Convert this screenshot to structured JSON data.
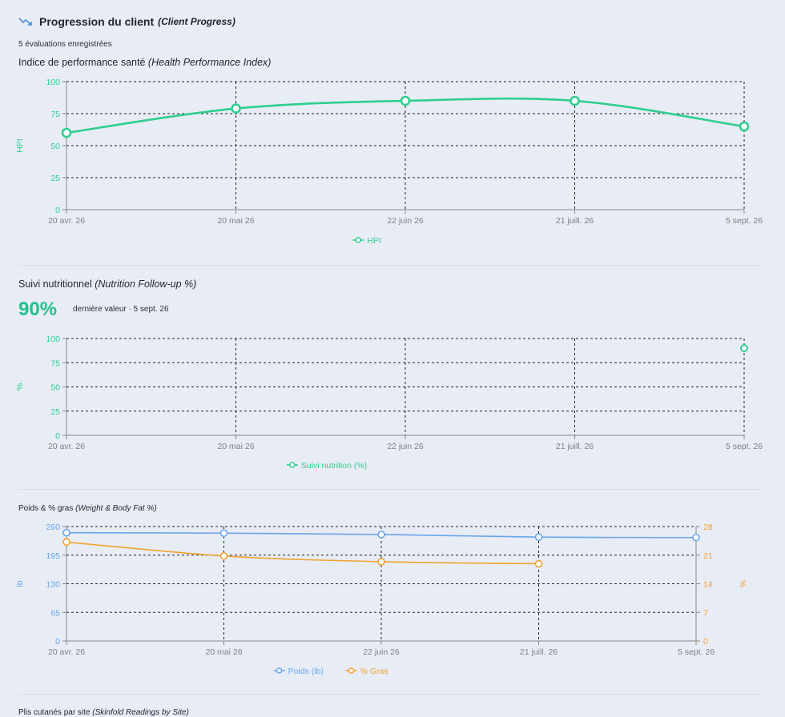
{
  "header": {
    "title": "Progression du client",
    "title_en": "(Client Progress)",
    "count_text": "5 évaluations enregistrées"
  },
  "sections": {
    "hpi": {
      "title": "Indice de performance santé",
      "title_en": "(Health Performance Index)"
    },
    "nutrition": {
      "title": "Suivi nutritionnel",
      "title_en": "(Nutrition Follow-up %)",
      "big_value": "90%",
      "last_value_text": "dernière valeur · 5 sept. 26"
    },
    "weight": {
      "title": "Poids & % gras",
      "title_en": "(Weight & Body Fat %)"
    },
    "skinfold": {
      "title": "Plis cutanés par site",
      "title_en": "(Skinfold Readings by Site)"
    }
  },
  "colors": {
    "green": "#2fcf8f",
    "blue": "#6aa5ea",
    "orange": "#f0a22e",
    "text": "#1f2430"
  },
  "chart_data": [
    {
      "type": "line",
      "x": [
        "20 avr. 26",
        "20 mai 26",
        "22 juin 26",
        "21 juill. 26",
        "5 sept. 26"
      ],
      "series": [
        {
          "name": "HPI",
          "values": [
            60,
            79,
            85,
            85,
            65
          ],
          "color": "#2fcf8f"
        }
      ],
      "ylabel": "HPI",
      "yticks": [
        "0",
        "25",
        "50",
        "75",
        "100"
      ],
      "ylim": [
        0,
        100
      ],
      "grid": true,
      "legend": "bottom"
    },
    {
      "type": "scatter",
      "x": [
        "20 avr. 26",
        "20 mai 26",
        "22 juin 26",
        "21 juill. 26",
        "5 sept. 26"
      ],
      "series": [
        {
          "name": "Suivi nutrition (%)",
          "values": [
            null,
            null,
            null,
            null,
            90
          ],
          "color": "#2fcf8f"
        }
      ],
      "ylabel": "%",
      "yticks": [
        "0",
        "25",
        "50",
        "75",
        "100"
      ],
      "ylim": [
        0,
        100
      ],
      "grid": true,
      "legend": "bottom"
    },
    {
      "type": "line",
      "x": [
        "20 avr. 26",
        "20 mai 26",
        "22 juin 26",
        "21 juill. 26",
        "5 sept. 26"
      ],
      "series": [
        {
          "name": "Poids (lb)",
          "values": [
            246,
            245,
            242,
            236,
            235
          ],
          "color": "#6aa5ea",
          "axis": "left"
        },
        {
          "name": "% Gras",
          "values": [
            24.2,
            20.8,
            19.4,
            18.9,
            null
          ],
          "color": "#f0a22e",
          "axis": "right"
        }
      ],
      "ylabel": "lb",
      "y2label": "%",
      "yticks": [
        "0",
        "65",
        "130",
        "195",
        "260"
      ],
      "y2ticks": [
        "0",
        "7",
        "14",
        "21",
        "28"
      ],
      "ylim": [
        0,
        260
      ],
      "y2lim": [
        0,
        28
      ],
      "grid": true,
      "legend": "bottom"
    }
  ]
}
